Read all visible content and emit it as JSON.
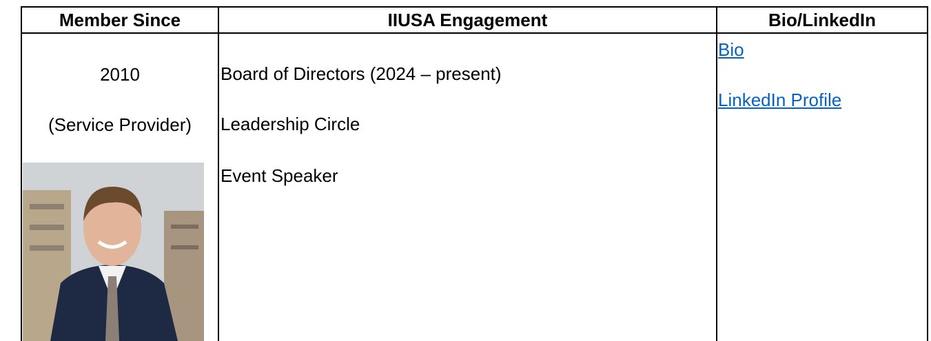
{
  "table": {
    "header": [
      "Member Since",
      "IIUSA Engagement",
      "Bio/LinkedIn"
    ],
    "member_since": {
      "year": "2010",
      "member_type": "(Service Provider)"
    },
    "engagement": [
      "Board of Directors (2024 – present)",
      "Leadership Circle",
      "Event Speaker"
    ],
    "links": [
      "Bio",
      "LinkedIn Profile"
    ]
  }
}
